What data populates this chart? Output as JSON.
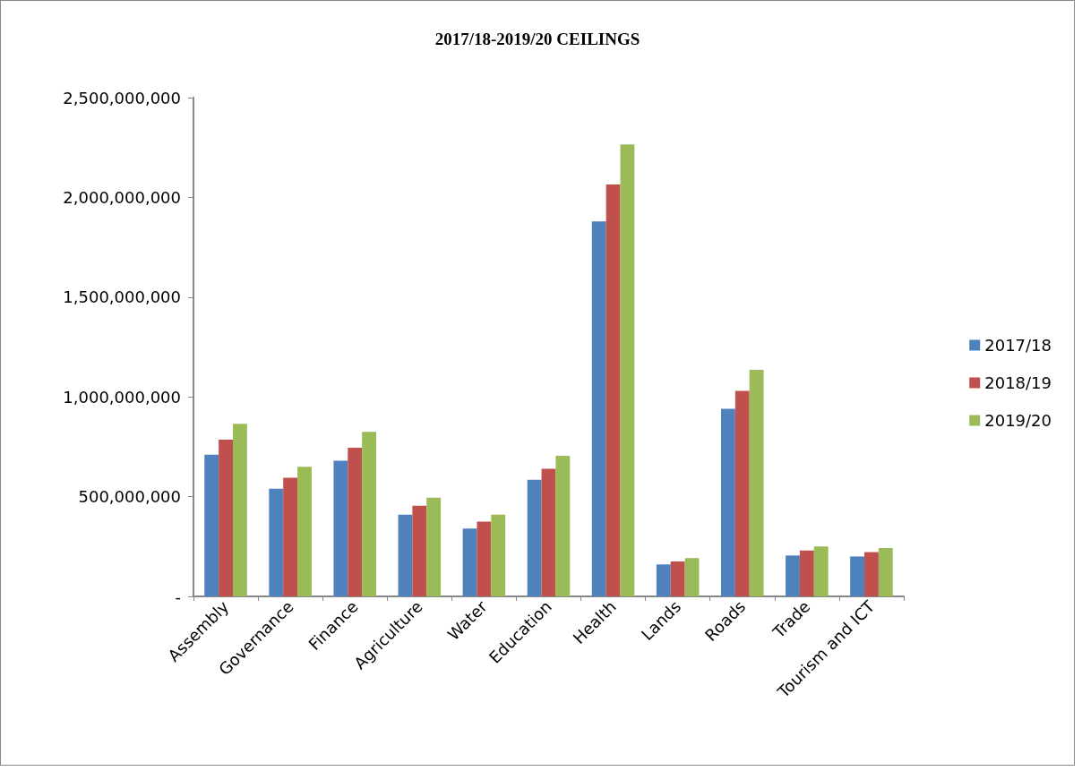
{
  "chart_data": {
    "type": "bar",
    "title": "2017/18-2019/20 CEILINGS",
    "categories": [
      "Assembly",
      "Governance",
      "Finance",
      "Agriculture",
      "Water",
      "Education",
      "Health",
      "Lands",
      "Roads",
      "Trade",
      "Tourism and ICT"
    ],
    "series": [
      {
        "name": "2017/18",
        "color": "#4f81bd",
        "values": [
          710000000,
          540000000,
          680000000,
          410000000,
          340000000,
          585000000,
          1880000000,
          160000000,
          940000000,
          205000000,
          200000000
        ]
      },
      {
        "name": "2018/19",
        "color": "#c0504d",
        "values": [
          785000000,
          595000000,
          745000000,
          455000000,
          375000000,
          640000000,
          2065000000,
          175000000,
          1030000000,
          230000000,
          222000000
        ]
      },
      {
        "name": "2019/20",
        "color": "#9bbb59",
        "values": [
          865000000,
          650000000,
          825000000,
          495000000,
          410000000,
          705000000,
          2265000000,
          192000000,
          1135000000,
          250000000,
          242000000
        ]
      }
    ],
    "ylim": [
      0,
      2500000000
    ],
    "yticks": [
      {
        "value": 0,
        "label": "-"
      },
      {
        "value": 500000000,
        "label": "500,000,000"
      },
      {
        "value": 1000000000,
        "label": "1,000,000,000"
      },
      {
        "value": 1500000000,
        "label": "1,500,000,000"
      },
      {
        "value": 2000000000,
        "label": "2,000,000,000"
      },
      {
        "value": 2500000000,
        "label": "2,500,000,000"
      }
    ],
    "grid": false,
    "legend": "right"
  }
}
